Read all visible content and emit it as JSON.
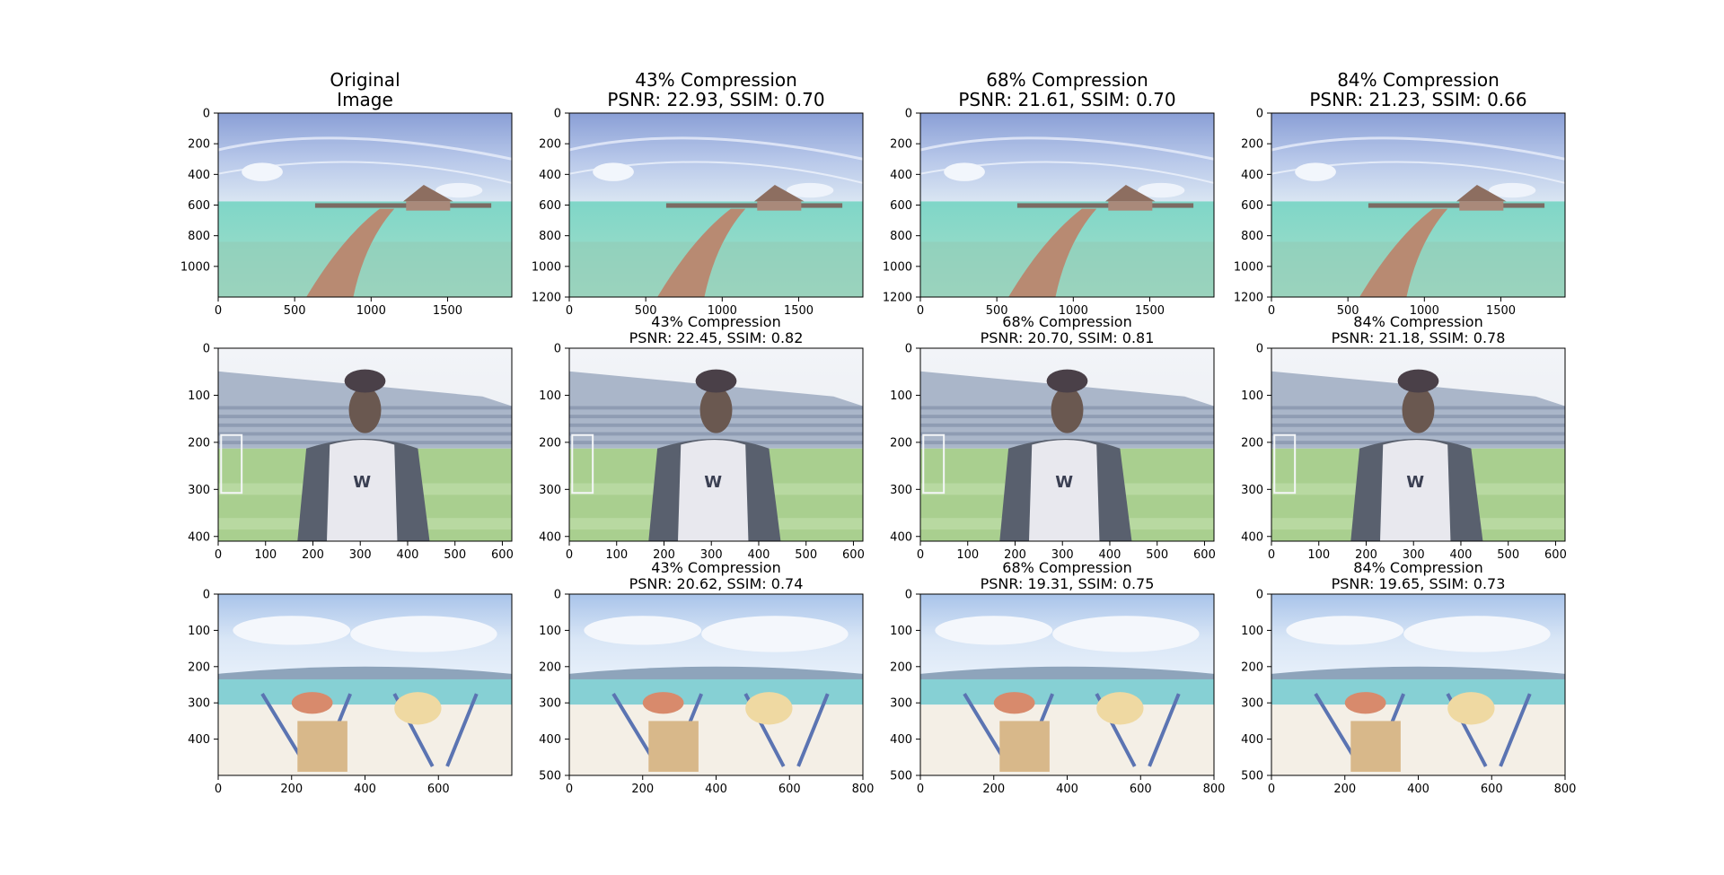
{
  "chart_data": {
    "type": "image-grid",
    "column_titles": [
      "Original\nImage",
      "43% Compression",
      "68% Compression",
      "84% Compression"
    ],
    "rows": [
      {
        "name": "overwater-villa",
        "original": {
          "xticks": [
            0,
            500,
            1000,
            1500
          ],
          "yticks": [
            0,
            200,
            400,
            600,
            800,
            1000
          ]
        },
        "compressed": {
          "xticks": [
            0,
            500,
            1000,
            1500
          ],
          "yticks": [
            0,
            200,
            400,
            600,
            800,
            1000,
            1200
          ]
        },
        "xlim": [
          0,
          1920
        ],
        "ylim": [
          1200,
          0
        ],
        "metrics": [
          {
            "compression": "43% Compression",
            "psnr": "22.93",
            "ssim": "0.70",
            "label": "PSNR: 22.93, SSIM: 0.70"
          },
          {
            "compression": "68% Compression",
            "psnr": "21.61",
            "ssim": "0.70",
            "label": "PSNR: 21.61, SSIM: 0.70"
          },
          {
            "compression": "84% Compression",
            "psnr": "21.23",
            "ssim": "0.66",
            "label": "PSNR: 21.23, SSIM: 0.66"
          }
        ]
      },
      {
        "name": "stadium-player",
        "original": {
          "xticks": [
            0,
            100,
            200,
            300,
            400,
            500,
            600
          ],
          "yticks": [
            0,
            100,
            200,
            300,
            400
          ]
        },
        "compressed": {
          "xticks": [
            0,
            100,
            200,
            300,
            400,
            500,
            600
          ],
          "yticks": [
            0,
            100,
            200,
            300,
            400
          ]
        },
        "xlim": [
          0,
          620
        ],
        "ylim": [
          410,
          0
        ],
        "metrics": [
          {
            "compression": "43% Compression",
            "psnr": "22.45",
            "ssim": "0.82",
            "label": "PSNR: 22.45, SSIM: 0.82"
          },
          {
            "compression": "68% Compression",
            "psnr": "20.70",
            "ssim": "0.81",
            "label": "PSNR: 20.70, SSIM: 0.81"
          },
          {
            "compression": "84% Compression",
            "psnr": "21.18",
            "ssim": "0.78",
            "label": "PSNR: 21.18, SSIM: 0.78"
          }
        ]
      },
      {
        "name": "beach-loungers",
        "original": {
          "xticks": [
            0,
            200,
            400,
            600
          ],
          "yticks": [
            0,
            100,
            200,
            300,
            400
          ]
        },
        "compressed": {
          "xticks": [
            0,
            200,
            400,
            600,
            800
          ],
          "yticks": [
            0,
            100,
            200,
            300,
            400,
            500
          ]
        },
        "xlim": [
          0,
          800
        ],
        "ylim": [
          500,
          0
        ],
        "metrics": [
          {
            "compression": "43% Compression",
            "psnr": "20.62",
            "ssim": "0.74",
            "label": "PSNR: 20.62, SSIM: 0.74"
          },
          {
            "compression": "68% Compression",
            "psnr": "19.31",
            "ssim": "0.75",
            "label": "PSNR: 19.31, SSIM: 0.75"
          },
          {
            "compression": "84% Compression",
            "psnr": "19.65",
            "ssim": "0.73",
            "label": "PSNR: 19.65, SSIM: 0.73"
          }
        ]
      }
    ]
  }
}
